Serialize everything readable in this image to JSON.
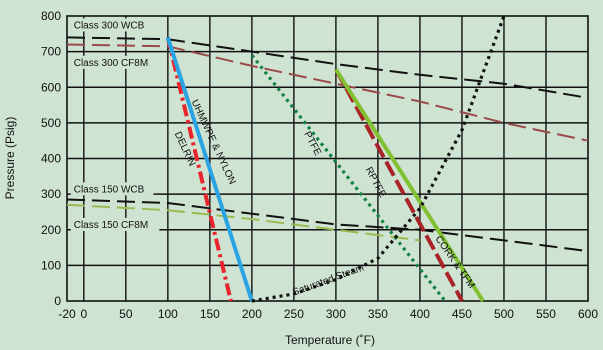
{
  "chart_data": {
    "type": "line",
    "title": "",
    "xlabel": "Temperature (˚F)",
    "ylabel": "Pressure (Psig)",
    "xlim": [
      -20,
      600
    ],
    "ylim": [
      0,
      800
    ],
    "x_ticks": [
      -20,
      0,
      50,
      100,
      150,
      200,
      250,
      300,
      350,
      400,
      450,
      500,
      550,
      600
    ],
    "x_tick_labels": [
      "-20",
      "0",
      "50",
      "100",
      "150",
      "200",
      "250",
      "300",
      "350",
      "400",
      "450",
      "500",
      "550",
      "600"
    ],
    "y_ticks": [
      0,
      100,
      200,
      300,
      400,
      500,
      600,
      700,
      800
    ],
    "y_tick_labels": [
      "0",
      "100",
      "200",
      "300",
      "400",
      "500",
      "600",
      "700",
      "800"
    ],
    "grid": true,
    "series": [
      {
        "name": "Class 300 WCB",
        "color": "#111111",
        "style": "dashed",
        "x": [
          -20,
          100,
          200,
          300,
          400,
          500,
          600
        ],
        "y": [
          740,
          735,
          700,
          665,
          635,
          610,
          570
        ]
      },
      {
        "name": "Class 300 CF8M",
        "color": "#9a4a4a",
        "style": "dashed",
        "x": [
          -20,
          100,
          200,
          300,
          400,
          500,
          600
        ],
        "y": [
          720,
          715,
          660,
          610,
          560,
          500,
          450
        ]
      },
      {
        "name": "Class 150 WCB",
        "color": "#111111",
        "style": "dashed",
        "x": [
          -20,
          100,
          200,
          300,
          400,
          500,
          600
        ],
        "y": [
          285,
          275,
          245,
          215,
          200,
          170,
          140
        ]
      },
      {
        "name": "Class 150 CF8M",
        "color": "#9cba52",
        "style": "dashed",
        "x": [
          -20,
          100,
          200,
          300,
          400
        ],
        "y": [
          270,
          255,
          230,
          200,
          170
        ]
      },
      {
        "name": "",
        "color": "#e8242c",
        "style": "dashdot",
        "x": [
          100,
          175
        ],
        "y": [
          740,
          0
        ]
      },
      {
        "name": "",
        "color": "#2aa3e3",
        "style": "solid",
        "x": [
          100,
          200
        ],
        "y": [
          740,
          0
        ]
      },
      {
        "name": "",
        "color": "#118040",
        "style": "dotted",
        "x": [
          200,
          430
        ],
        "y": [
          690,
          0
        ]
      },
      {
        "name": "",
        "color": "#a82428",
        "style": "dashdash",
        "x": [
          300,
          450
        ],
        "y": [
          650,
          0
        ]
      },
      {
        "name": "",
        "color": "#80c032",
        "style": "solid",
        "x": [
          300,
          475
        ],
        "y": [
          650,
          0
        ]
      },
      {
        "name": "",
        "color": "#111111",
        "style": "dotted",
        "x": [
          200,
          250,
          300,
          350,
          400,
          450,
          500
        ],
        "y": [
          0,
          20,
          60,
          120,
          260,
          480,
          800
        ]
      }
    ],
    "annotations": [
      {
        "text": "Class 300 WCB",
        "x": -12,
        "y": 765
      },
      {
        "text": "Class 300 CF8M",
        "x": -12,
        "y": 660
      },
      {
        "text": "Class 150 WCB",
        "x": -12,
        "y": 305
      },
      {
        "text": "Class 150 CF8M",
        "x": -12,
        "y": 205
      },
      {
        "text": "UHMWPE & NYLON",
        "x": 128,
        "y": 560,
        "rotate": 65
      },
      {
        "text": "DELRIN",
        "x": 108,
        "y": 470,
        "rotate": 65
      },
      {
        "text": "PTFE",
        "x": 262,
        "y": 470,
        "rotate": 62
      },
      {
        "text": "RPTFE",
        "x": 335,
        "y": 370,
        "rotate": 62
      },
      {
        "text": "Saturated Steam",
        "x": 250,
        "y": 15,
        "rotate": -20
      },
      {
        "text": "CORK & TFM",
        "x": 418,
        "y": 175,
        "rotate": 55
      }
    ]
  }
}
